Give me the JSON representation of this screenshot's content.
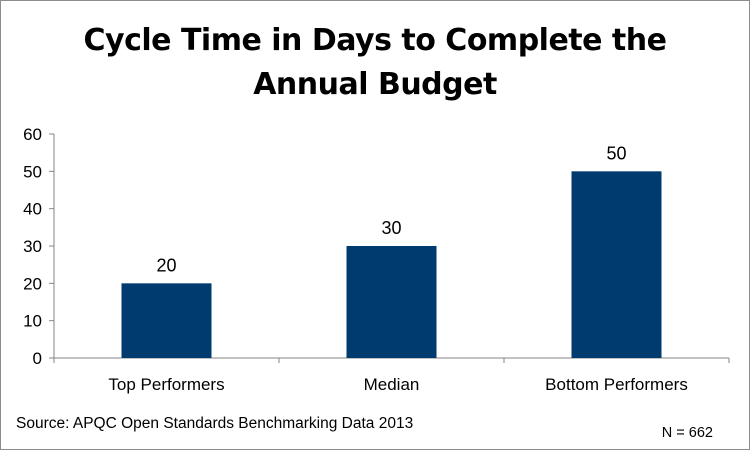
{
  "chart_data": {
    "type": "bar",
    "title_lines": [
      "Cycle Time in Days to Complete the",
      "Annual Budget"
    ],
    "categories": [
      "Top Performers",
      "Median",
      "Bottom Performers"
    ],
    "values": [
      20,
      30,
      50
    ],
    "data_labels": [
      "20",
      "30",
      "50"
    ],
    "yticks": [
      0,
      10,
      20,
      30,
      40,
      50,
      60
    ],
    "ylim": [
      0,
      60
    ],
    "grid": false,
    "legend": "none",
    "bar_color": "#003b6f"
  },
  "footer": {
    "source": "Source: APQC Open Standards Benchmarking Data 2013",
    "n_note": "N = 662"
  }
}
